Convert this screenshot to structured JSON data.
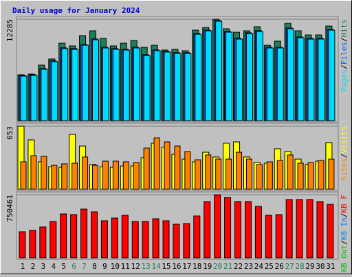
{
  "chart_data": [
    {
      "type": "bar",
      "title": "Daily usage for January 2024",
      "ylim": [
        0,
        12285
      ],
      "yticks": [
        12285
      ],
      "legend_separator": "/",
      "series": [
        {
          "name": "Hits",
          "color": "#1e7e5a",
          "values": [
            5561,
            5644,
            6724,
            7470,
            9380,
            9048,
            10293,
            10874,
            9961,
            9048,
            9380,
            9712,
            8882,
            9131,
            8550,
            8633,
            8467,
            10957,
            11289,
            12285,
            11123,
            10708,
            10874,
            11372,
            9131,
            9629,
            11787,
            10874,
            10376,
            10376,
            11455
          ]
        },
        {
          "name": "Files",
          "color": "#0060ff",
          "values": [
            5480,
            5560,
            6330,
            7240,
            8820,
            8730,
            9230,
            9900,
            8900,
            8730,
            8650,
            8900,
            7990,
            8570,
            8400,
            8240,
            8240,
            10560,
            10970,
            12130,
            10810,
            9980,
            10640,
            10890,
            8900,
            8900,
            11220,
            10140,
            9980,
            9980,
            11050
          ]
        },
        {
          "name": "Pages",
          "color": "#00dcff",
          "values": [
            5395,
            5478,
            6225,
            7138,
            8715,
            8632,
            9130,
            9794,
            8798,
            8632,
            8549,
            8798,
            7885,
            8466,
            8300,
            8134,
            8134,
            10458,
            10873,
            12035,
            10707,
            9877,
            10541,
            10790,
            8798,
            8798,
            11122,
            10043,
            9877,
            9877,
            10956
          ]
        }
      ]
    },
    {
      "type": "bar",
      "ylim": [
        0,
        653
      ],
      "yticks": [
        653
      ],
      "legend_separator": "/",
      "series": [
        {
          "name": "Visits",
          "color": "#ffff00",
          "values": [
            653,
            511,
            284,
            234,
            227,
            568,
            447,
            256,
            234,
            227,
            241,
            241,
            327,
            476,
            433,
            362,
            312,
            284,
            383,
            334,
            476,
            490,
            334,
            277,
            270,
            419,
            390,
            312,
            256,
            291,
            483
          ]
        },
        {
          "name": "Sites",
          "color": "#ff8000",
          "values": [
            284,
            348,
            341,
            248,
            263,
            270,
            334,
            248,
            291,
            291,
            284,
            277,
            426,
            532,
            490,
            447,
            390,
            305,
            355,
            312,
            312,
            383,
            312,
            256,
            284,
            298,
            355,
            270,
            277,
            298,
            312
          ]
        }
      ]
    },
    {
      "type": "bar",
      "ylim": [
        0,
        750461
      ],
      "yticks": [
        750461
      ],
      "legend_separator": "/",
      "categories": [
        "1",
        "2",
        "3",
        "4",
        "5",
        "6",
        "7",
        "8",
        "9",
        "10",
        "11",
        "12",
        "13",
        "14",
        "15",
        "16",
        "17",
        "18",
        "19",
        "20",
        "21",
        "22",
        "23",
        "24",
        "25",
        "26",
        "27",
        "28",
        "29",
        "30",
        "31"
      ],
      "category_colors": [
        "#000000",
        "#000000",
        "#000000",
        "#000000",
        "#000000",
        "#1e7e5a",
        "#1e7e5a",
        "#000000",
        "#000000",
        "#000000",
        "#000000",
        "#000000",
        "#1e7e5a",
        "#1e7e5a",
        "#000000",
        "#000000",
        "#000000",
        "#000000",
        "#000000",
        "#1e7e5a",
        "#1e7e5a",
        "#000000",
        "#000000",
        "#000000",
        "#000000",
        "#000000",
        "#1e7e5a",
        "#1e7e5a",
        "#000000",
        "#000000",
        "#000000"
      ],
      "series": [
        {
          "name": "KB F",
          "color": "#ff0000",
          "values": [
            309966,
            326280,
            367065,
            432321,
            522048,
            513891,
            579147,
            546519,
            440478,
            473106,
            505734,
            432321,
            432321,
            464949,
            440478,
            399693,
            407850,
            497577,
            668874,
            750461,
            717816,
            668874,
            668874,
            611775,
            505734,
            513891,
            693345,
            693345,
            693345,
            668874,
            636246
          ]
        },
        {
          "name": "KB In",
          "color": "#0080ff"
        },
        {
          "name": "KB Out",
          "color": "#00c000"
        }
      ]
    }
  ]
}
